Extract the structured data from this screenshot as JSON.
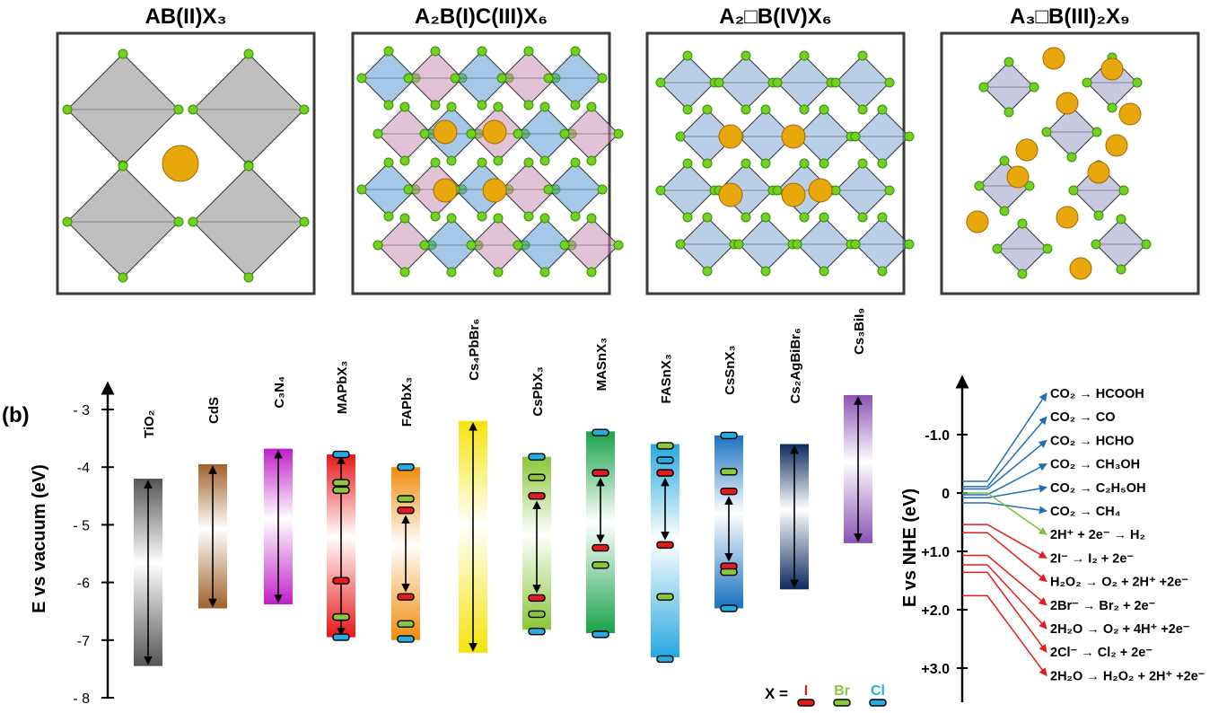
{
  "structures": [
    {
      "label": "AB(II)X₃",
      "type": "cubic"
    },
    {
      "label": "A₂B(I)C(III)X₆",
      "type": "double"
    },
    {
      "label": "A₂□B(IV)X₆",
      "type": "vacancy-ordered"
    },
    {
      "label": "A₃□B(III)₂X₉",
      "type": "layered"
    }
  ],
  "panel_label": "(b)",
  "left_axis": {
    "label": "E vs vacuum (eV)",
    "ticks": [
      "- 3",
      "-4",
      "- 5",
      "-6",
      "-7",
      "- 8"
    ]
  },
  "materials": [
    {
      "name": "TiO₂",
      "cb": -4.2,
      "vb": -7.45,
      "color": "#555555"
    },
    {
      "name": "CdS",
      "cb": -3.95,
      "vb": -6.45,
      "color": "#a0622a"
    },
    {
      "name": "C₃N₄",
      "cb": -3.68,
      "vb": -6.38,
      "color": "#c020c8"
    },
    {
      "name": "MAPbX₃",
      "cb": -3.78,
      "vb": -6.95,
      "color": "#e81818",
      "levels": [
        {
          "x": "Cl",
          "e": -3.78
        },
        {
          "x": "Br",
          "e": -4.27
        },
        {
          "x": "Br",
          "e": -4.4
        },
        {
          "x": "I",
          "e": -5.97
        },
        {
          "x": "Br",
          "e": -6.6
        },
        {
          "x": "Cl",
          "e": -6.95
        }
      ]
    },
    {
      "name": "FAPbX₃",
      "cb": -4.0,
      "vb": -7.0,
      "color": "#f08c0a",
      "levels": [
        {
          "x": "Cl",
          "e": -4.0
        },
        {
          "x": "Br",
          "e": -4.55
        },
        {
          "x": "I",
          "e": -4.75
        },
        {
          "x": "I",
          "e": -6.25
        },
        {
          "x": "Br",
          "e": -6.72
        },
        {
          "x": "Cl",
          "e": -6.98
        }
      ]
    },
    {
      "name": "Cs₄PbBr₆",
      "cb": -3.2,
      "vb": -7.22,
      "color": "#f4e40a"
    },
    {
      "name": "CsPbX₃",
      "cb": -3.82,
      "vb": -6.82,
      "color": "#8ac63a",
      "levels": [
        {
          "x": "Cl",
          "e": -3.82
        },
        {
          "x": "Br",
          "e": -4.18
        },
        {
          "x": "I",
          "e": -4.5
        },
        {
          "x": "I",
          "e": -6.27
        },
        {
          "x": "Br",
          "e": -6.55
        },
        {
          "x": "Cl",
          "e": -6.85
        }
      ]
    },
    {
      "name": "MASnX₃",
      "cb": -3.38,
      "vb": -6.88,
      "color": "#1aa24a",
      "levels": [
        {
          "x": "Cl",
          "e": -3.4
        },
        {
          "x": "I",
          "e": -4.1
        },
        {
          "x": "I",
          "e": -5.4
        },
        {
          "x": "Br",
          "e": -5.7
        },
        {
          "x": "Cl",
          "e": -6.9
        }
      ]
    },
    {
      "name": "FASnX₃",
      "cb": -3.6,
      "vb": -7.3,
      "color": "#28a8e0",
      "levels": [
        {
          "x": "Br",
          "e": -3.63
        },
        {
          "x": "Cl",
          "e": -3.88
        },
        {
          "x": "I",
          "e": -4.1
        },
        {
          "x": "I",
          "e": -5.35
        },
        {
          "x": "Br",
          "e": -6.25
        },
        {
          "x": "Cl",
          "e": -7.33
        }
      ]
    },
    {
      "name": "CsSnX₃",
      "cb": -3.45,
      "vb": -6.45,
      "color": "#1870c0",
      "levels": [
        {
          "x": "Cl",
          "e": -3.45
        },
        {
          "x": "Br",
          "e": -4.08
        },
        {
          "x": "I",
          "e": -4.42
        },
        {
          "x": "I",
          "e": -5.72
        },
        {
          "x": "Br",
          "e": -5.82
        },
        {
          "x": "Cl",
          "e": -6.45
        }
      ]
    },
    {
      "name": "Cs₂AgBiBr₆",
      "cb": -3.6,
      "vb": -6.12,
      "color": "#0c2a5e"
    },
    {
      "name": "Cs₃BiI₉",
      "cb": -2.75,
      "vb": -5.32,
      "color": "#8a52b4"
    }
  ],
  "legend": {
    "prefix": "X =",
    "items": [
      {
        "name": "I",
        "color": "#e21b1b"
      },
      {
        "name": "Br",
        "color": "#8cc63f"
      },
      {
        "name": "Cl",
        "color": "#29aae1"
      }
    ]
  },
  "right_axis": {
    "label": "E vs NHE (eV)",
    "ticks": [
      "-1.0",
      "0",
      "+1.0",
      "+2.0",
      "+3.0"
    ]
  },
  "reactions": [
    {
      "text": "CO₂ → HCOOH",
      "potential": -0.2,
      "color": "#1f6fb5"
    },
    {
      "text": "CO₂ → CO",
      "potential": -0.11,
      "color": "#1f6fb5"
    },
    {
      "text": "CO₂ → HCHO",
      "potential": -0.07,
      "color": "#1f6fb5"
    },
    {
      "text": "CO₂ → CH₃OH",
      "potential": 0.03,
      "color": "#1f6fb5"
    },
    {
      "text": "CO₂ → C₂H₅OH",
      "potential": 0.08,
      "color": "#1f6fb5"
    },
    {
      "text": "CO₂ → CH₄",
      "potential": 0.17,
      "color": "#1f6fb5"
    },
    {
      "text": "2H⁺ + 2e⁻ → H₂",
      "potential": 0.0,
      "color": "#7ac143"
    },
    {
      "text": "2I⁻ → I₂ + 2e⁻",
      "potential": 0.54,
      "color": "#e21b1b"
    },
    {
      "text": "H₂O₂ → O₂ + 2H⁺ +2e⁻",
      "potential": 0.68,
      "color": "#e21b1b"
    },
    {
      "text": "2Br⁻ → Br₂ + 2e⁻",
      "potential": 1.07,
      "color": "#e21b1b"
    },
    {
      "text": "2H₂O → O₂ + 4H⁺ +2e⁻",
      "potential": 1.23,
      "color": "#e21b1b"
    },
    {
      "text": "2Cl⁻ → Cl₂ + 2e⁻",
      "potential": 1.36,
      "color": "#e21b1b"
    },
    {
      "text": "2H₂O → H₂O₂ + 2H⁺ +2e⁻",
      "potential": 1.76,
      "color": "#e21b1b"
    }
  ]
}
